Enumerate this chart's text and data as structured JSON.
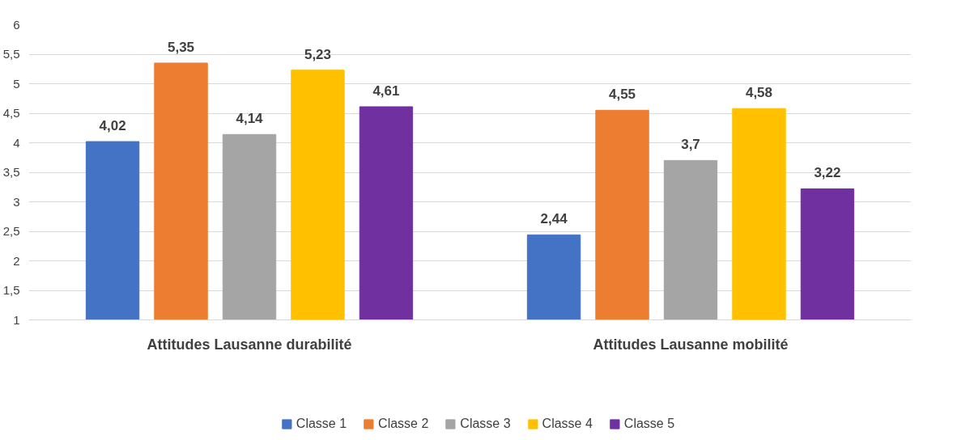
{
  "chart_data": {
    "type": "bar",
    "categories": [
      "Attitudes Lausanne durabilité",
      "Attitudes Lausanne mobilité"
    ],
    "series": [
      {
        "name": "Classe 1",
        "color": "#4472c4",
        "values": [
          4.02,
          2.44
        ],
        "value_labels": [
          "4,02",
          "2,44"
        ]
      },
      {
        "name": "Classe 2",
        "color": "#ed7d31",
        "values": [
          5.35,
          4.55
        ],
        "value_labels": [
          "5,35",
          "4,55"
        ]
      },
      {
        "name": "Classe 3",
        "color": "#a5a5a5",
        "values": [
          4.14,
          3.7
        ],
        "value_labels": [
          "4,14",
          "3,7"
        ]
      },
      {
        "name": "Classe 4",
        "color": "#ffc000",
        "values": [
          5.23,
          4.58
        ],
        "value_labels": [
          "5,23",
          "4,58"
        ]
      },
      {
        "name": "Classe 5",
        "color": "#7030a0",
        "values": [
          4.61,
          3.22
        ],
        "value_labels": [
          "4,61",
          "3,22"
        ]
      }
    ],
    "ylim": [
      1,
      6
    ],
    "yticks": [
      1,
      {
        "value": 1.5,
        "label": "1,5"
      },
      2,
      {
        "value": 2.5,
        "label": "2,5"
      },
      3,
      {
        "value": 3.5,
        "label": "3,5"
      },
      4,
      {
        "value": 4.5,
        "label": "4,5"
      },
      5,
      {
        "value": 5.5,
        "label": "5,5"
      },
      6
    ],
    "grid": "y",
    "legend": "bottom"
  }
}
